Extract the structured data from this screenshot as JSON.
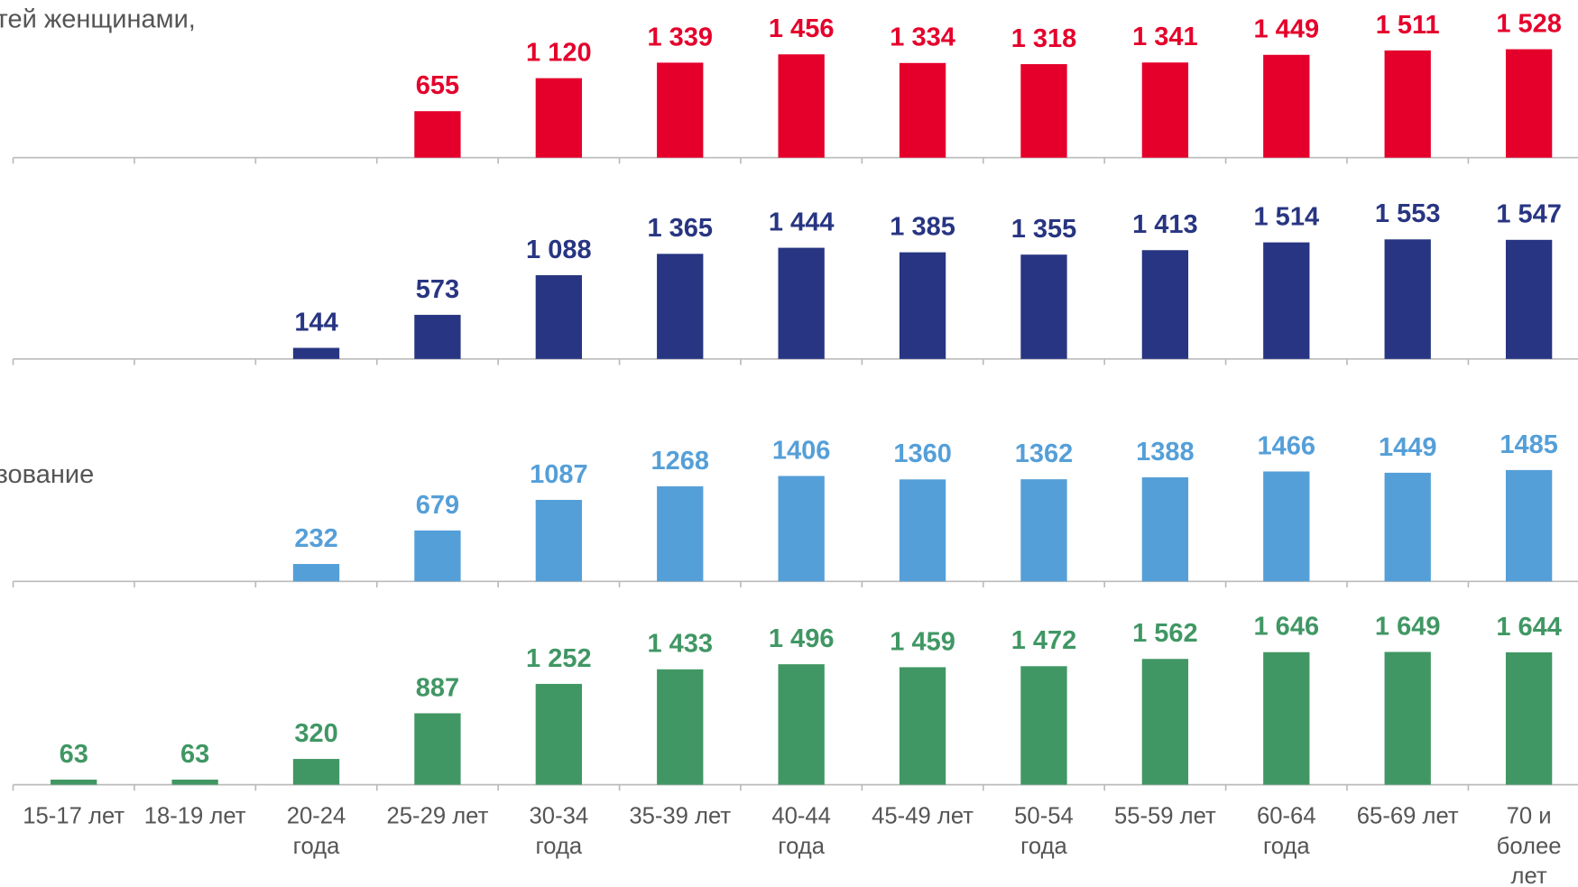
{
  "chart_data": [
    {
      "type": "bar",
      "title": "тей женщинами,",
      "color": "#e4002b",
      "categories": [
        "15-17 лет",
        "18-19 лет",
        "20-24\nгода",
        "25-29 лет",
        "30-34\nгода",
        "35-39 лет",
        "40-44\nгода",
        "45-49 лет",
        "50-54\nгода",
        "55-59 лет",
        "60-64\nгода",
        "65-69 лет",
        "70 и\nболее\nлет"
      ],
      "values": [
        null,
        null,
        null,
        655,
        1120,
        1339,
        1456,
        1334,
        1318,
        1341,
        1449,
        1511,
        1528
      ],
      "value_labels": [
        null,
        null,
        null,
        "655",
        "1 120",
        "1 339",
        "1 456",
        "1 334",
        "1 318",
        "1 341",
        "1 449",
        "1 511",
        "1 528"
      ],
      "ylim": [
        0,
        2000
      ]
    },
    {
      "type": "bar",
      "color": "#283582",
      "values": [
        null,
        null,
        144,
        573,
        1088,
        1365,
        1444,
        1385,
        1355,
        1413,
        1514,
        1553,
        1547
      ],
      "value_labels": [
        null,
        null,
        "144",
        "573",
        "1 088",
        "1 365",
        "1 444",
        "1 385",
        "1 355",
        "1 413",
        "1 514",
        "1 553",
        "1 547"
      ],
      "ylim": [
        0,
        2000
      ]
    },
    {
      "type": "bar",
      "title": "зование",
      "color": "#559fd8",
      "values": [
        null,
        null,
        232,
        679,
        1087,
        1268,
        1406,
        1360,
        1362,
        1388,
        1466,
        1449,
        1485
      ],
      "ylim": [
        0,
        2000
      ]
    },
    {
      "type": "bar",
      "color": "#409764",
      "values": [
        63,
        63,
        320,
        887,
        1252,
        1433,
        1496,
        1459,
        1472,
        1562,
        1646,
        1649,
        1644
      ],
      "value_labels": [
        "63",
        "63",
        "320",
        "887",
        "1 252",
        "1 433",
        "1 496",
        "1 459",
        "1 472",
        "1 562",
        "1 646",
        "1 649",
        "1 644"
      ],
      "ylim": [
        0,
        2000
      ]
    }
  ]
}
